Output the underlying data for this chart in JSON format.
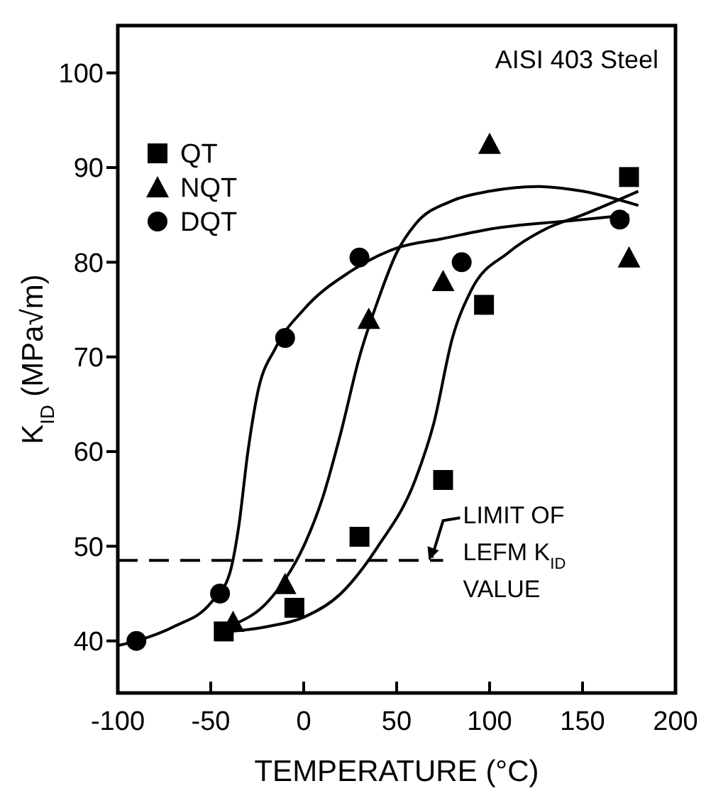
{
  "chart_data": {
    "type": "scatter",
    "xlabel": "TEMPERATURE (°C)",
    "ylabel": "K$_{ID}$ (MPa√m)",
    "xlim": [
      -100,
      200
    ],
    "xticks": [
      -100,
      -50,
      0,
      50,
      100,
      150,
      200
    ],
    "ylim": [
      34.5,
      105
    ],
    "yticks": [
      40,
      50,
      60,
      70,
      80,
      90,
      100
    ],
    "legend": "top left",
    "grid": false,
    "annotations": [
      "AISI 403 Steel"
    ],
    "ref_lines": [
      {
        "axis": "y",
        "value": 48.5,
        "label": "LIMIT OF LEFM K$_{ID}$ VALUE",
        "line_style": "dashed",
        "color": "#000000"
      }
    ],
    "series": [
      {
        "name": "QT",
        "type": "scatter",
        "marker": "square",
        "color": "#000000",
        "x": [
          -43,
          -5,
          30,
          75,
          97,
          175
        ],
        "values": [
          41,
          43.5,
          51,
          57,
          75.5,
          89
        ]
      },
      {
        "name": "NQT",
        "type": "scatter",
        "marker": "triangle",
        "color": "#000000",
        "x": [
          -38,
          -10,
          35,
          75,
          100,
          175
        ],
        "values": [
          42,
          46,
          74,
          78,
          92.5,
          80.5
        ]
      },
      {
        "name": "DQT",
        "type": "scatter",
        "marker": "circle",
        "color": "#000000",
        "x": [
          -90,
          -45,
          -10,
          30,
          85,
          170
        ],
        "values": [
          40,
          45,
          72,
          80.5,
          80,
          84.5
        ]
      },
      {
        "type": "line",
        "marker": "none",
        "color": "#000000",
        "x": [
          -100,
          -90,
          -70,
          -50,
          -40,
          -35,
          -30,
          -25,
          -15,
          0,
          25,
          50,
          75,
          100,
          150,
          175
        ],
        "values": [
          39.5,
          40,
          41.5,
          44,
          47,
          52,
          60,
          66,
          71,
          75,
          79,
          81.5,
          82.5,
          83.5,
          84.5,
          85
        ]
      },
      {
        "type": "line",
        "marker": "none",
        "color": "#000000",
        "x": [
          -46,
          -40,
          -20,
          -10,
          0,
          10,
          20,
          30,
          40,
          50,
          60,
          80,
          100,
          125,
          150,
          180
        ],
        "values": [
          41,
          41.5,
          44,
          46.5,
          50,
          55,
          62,
          70,
          76,
          81,
          84,
          86.5,
          87.5,
          88,
          87.5,
          86
        ]
      },
      {
        "type": "line",
        "marker": "none",
        "color": "#000000",
        "x": [
          -48,
          -40,
          -20,
          0,
          20,
          40,
          60,
          70,
          80,
          90,
          110,
          130,
          150,
          180
        ],
        "values": [
          40.9,
          41,
          41.5,
          42.5,
          45,
          50,
          57,
          63,
          72,
          77,
          81,
          83.5,
          85,
          87.5
        ]
      }
    ]
  }
}
